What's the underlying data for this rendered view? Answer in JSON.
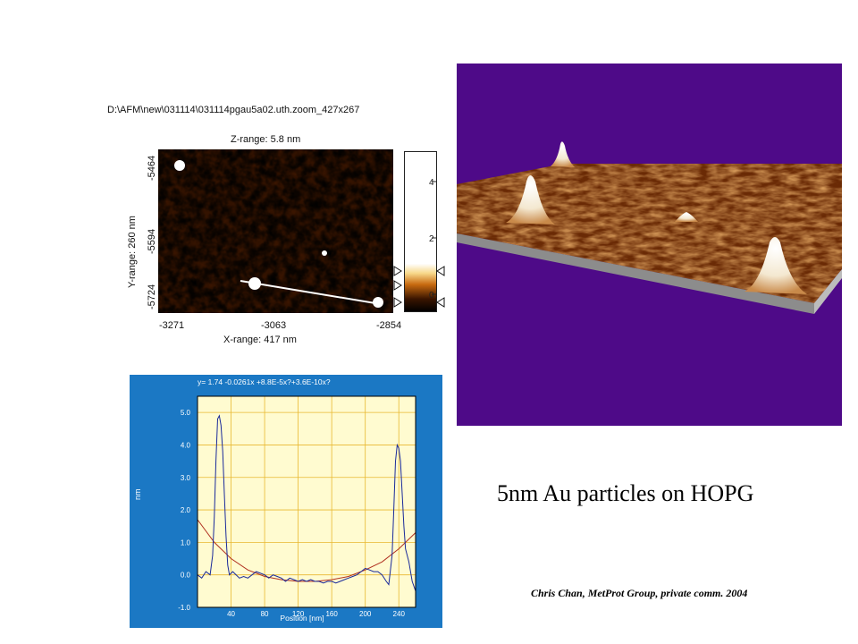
{
  "afm_scan": {
    "file_path": "D:\\AFM\\new\\031114\\031114pgau5a02.uth.zoom_427x267",
    "z_range_label": "Z-range: 5.8 nm",
    "x_range_label": "X-range:  417 nm",
    "y_range_label": "Y-range:   260 nm",
    "x_ticks": [
      "-3271",
      "-3063",
      "-2854"
    ],
    "y_ticks": [
      "-5464",
      "-5594",
      "-5724"
    ],
    "colorbar_ticks": [
      "4",
      "2",
      "0"
    ]
  },
  "profile": {
    "equation": "y= 1.74 -0.0261x +8.8E-5x?+3.6E-10x?",
    "y_axis_label": "nm",
    "x_axis_label": "Position [nm]",
    "y_ticks": [
      "5.0",
      "4.0",
      "3.0",
      "2.0",
      "1.0",
      "0.0",
      "-1.0"
    ],
    "x_ticks": [
      "40",
      "80",
      "120",
      "160",
      "200",
      "240"
    ]
  },
  "chart_data": {
    "type": "line",
    "title": "y= 1.74 -0.0261x +8.8E-5x?+3.6E-10x?",
    "xlabel": "Position [nm]",
    "ylabel": "nm",
    "xlim": [
      0,
      260
    ],
    "ylim": [
      -1.0,
      5.5
    ],
    "grid": true,
    "series": [
      {
        "values_xy": [
          [
            0,
            0.0
          ],
          [
            5,
            -0.1
          ],
          [
            10,
            0.1
          ],
          [
            15,
            0.0
          ],
          [
            18,
            0.6
          ],
          [
            20,
            1.8
          ],
          [
            22,
            3.5
          ],
          [
            24,
            4.8
          ],
          [
            26,
            4.9
          ],
          [
            28,
            4.6
          ],
          [
            30,
            3.8
          ],
          [
            32,
            2.5
          ],
          [
            34,
            1.2
          ],
          [
            36,
            0.3
          ],
          [
            38,
            0.0
          ],
          [
            42,
            0.1
          ],
          [
            46,
            0.0
          ],
          [
            50,
            -0.1
          ],
          [
            55,
            -0.05
          ],
          [
            60,
            -0.1
          ],
          [
            65,
            0.0
          ],
          [
            70,
            0.1
          ],
          [
            75,
            0.05
          ],
          [
            80,
            0.0
          ],
          [
            85,
            -0.1
          ],
          [
            90,
            0.0
          ],
          [
            95,
            -0.05
          ],
          [
            100,
            -0.1
          ],
          [
            105,
            -0.2
          ],
          [
            110,
            -0.1
          ],
          [
            115,
            -0.15
          ],
          [
            120,
            -0.2
          ],
          [
            125,
            -0.15
          ],
          [
            130,
            -0.2
          ],
          [
            135,
            -0.15
          ],
          [
            140,
            -0.2
          ],
          [
            145,
            -0.2
          ],
          [
            150,
            -0.25
          ],
          [
            155,
            -0.2
          ],
          [
            160,
            -0.2
          ],
          [
            165,
            -0.25
          ],
          [
            170,
            -0.2
          ],
          [
            175,
            -0.15
          ],
          [
            180,
            -0.1
          ],
          [
            185,
            -0.05
          ],
          [
            190,
            0.0
          ],
          [
            195,
            0.1
          ],
          [
            200,
            0.2
          ],
          [
            205,
            0.15
          ],
          [
            210,
            0.1
          ],
          [
            215,
            0.1
          ],
          [
            220,
            0.0
          ],
          [
            225,
            -0.2
          ],
          [
            228,
            -0.3
          ],
          [
            232,
            0.6
          ],
          [
            234,
            2.0
          ],
          [
            236,
            3.5
          ],
          [
            238,
            4.0
          ],
          [
            240,
            3.9
          ],
          [
            242,
            3.5
          ],
          [
            244,
            2.5
          ],
          [
            246,
            1.5
          ],
          [
            248,
            0.8
          ],
          [
            252,
            0.4
          ],
          [
            256,
            -0.2
          ],
          [
            260,
            -0.5
          ]
        ]
      },
      {
        "values_xy": [
          [
            0,
            1.7
          ],
          [
            20,
            1.0
          ],
          [
            40,
            0.5
          ],
          [
            60,
            0.15
          ],
          [
            80,
            -0.05
          ],
          [
            100,
            -0.15
          ],
          [
            120,
            -0.2
          ],
          [
            140,
            -0.2
          ],
          [
            160,
            -0.15
          ],
          [
            180,
            -0.05
          ],
          [
            200,
            0.15
          ],
          [
            220,
            0.4
          ],
          [
            240,
            0.8
          ],
          [
            260,
            1.3
          ]
        ]
      }
    ]
  },
  "render_3d": {
    "background_color": "#4e0a88"
  },
  "caption": "5nm Au particles on HOPG",
  "credit": "Chris Chan, MetProt Group, private comm. 2004"
}
